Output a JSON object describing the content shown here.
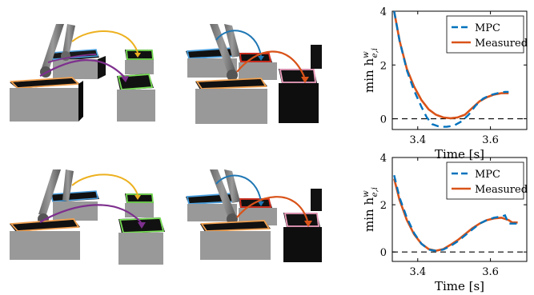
{
  "figure": {
    "panels": [
      {
        "name": "top-left-scene",
        "description_visible": false
      },
      {
        "name": "top-middle-scene",
        "description_visible": false
      },
      {
        "name": "bottom-left-scene",
        "description_visible": false
      },
      {
        "name": "bottom-middle-scene",
        "description_visible": false
      }
    ]
  },
  "colors": {
    "mpc": "#0072BD",
    "measured": "#D95319",
    "yellow": "#EDB120",
    "purple": "#7E2F8E",
    "blue": "#1f77b4",
    "green": "#77dd55",
    "orange_outline": "#f0a050",
    "pink_outline": "#f0a0c0",
    "red_outline": "#e03020"
  },
  "chart_data": [
    {
      "type": "line",
      "title": "",
      "xlabel": "Time [s]",
      "ylabel": "min h",
      "ylabel_sup": "w",
      "ylabel_sub": "e,i",
      "xlim": [
        3.33,
        3.7
      ],
      "ylim": [
        -0.4,
        4
      ],
      "xticks": [
        3.4,
        3.6
      ],
      "xtick_labels": [
        "3.4",
        "3.6"
      ],
      "yticks": [
        0,
        2,
        4
      ],
      "ytick_labels": [
        "0",
        "2",
        "4"
      ],
      "zero_line": true,
      "legend": "top-right",
      "series": [
        {
          "name": "MPC",
          "style": "dashed",
          "x": [
            3.335,
            3.35,
            3.37,
            3.39,
            3.41,
            3.425,
            3.44,
            3.46,
            3.48,
            3.5,
            3.52,
            3.54,
            3.56,
            3.58,
            3.6,
            3.62,
            3.64,
            3.65
          ],
          "y": [
            4.0,
            2.9,
            1.8,
            1.05,
            0.45,
            0.05,
            -0.2,
            -0.3,
            -0.3,
            -0.25,
            -0.1,
            0.15,
            0.5,
            0.75,
            0.88,
            0.95,
            1.0,
            1.0
          ]
        },
        {
          "name": "Measured",
          "style": "solid",
          "x": [
            3.335,
            3.35,
            3.37,
            3.39,
            3.41,
            3.43,
            3.45,
            3.47,
            3.49,
            3.51,
            3.53,
            3.55,
            3.57,
            3.59,
            3.61,
            3.63,
            3.65
          ],
          "y": [
            4.0,
            2.9,
            1.85,
            1.2,
            0.7,
            0.35,
            0.15,
            0.05,
            0.02,
            0.05,
            0.15,
            0.4,
            0.65,
            0.8,
            0.9,
            0.95,
            0.95
          ]
        }
      ]
    },
    {
      "type": "line",
      "title": "",
      "xlabel": "Time [s]",
      "ylabel": "min h",
      "ylabel_sup": "w",
      "ylabel_sub": "e,i",
      "xlim": [
        3.33,
        3.7
      ],
      "ylim": [
        -0.4,
        4
      ],
      "xticks": [
        3.4,
        3.6
      ],
      "xtick_labels": [
        "3.4",
        "3.6"
      ],
      "yticks": [
        0,
        2,
        4
      ],
      "ytick_labels": [
        "0",
        "2",
        "4"
      ],
      "zero_line": true,
      "legend": "top-right",
      "series": [
        {
          "name": "MPC",
          "style": "dashed",
          "x": [
            3.335,
            3.35,
            3.37,
            3.39,
            3.41,
            3.43,
            3.45,
            3.47,
            3.49,
            3.51,
            3.53,
            3.55,
            3.57,
            3.59,
            3.61,
            3.63,
            3.64,
            3.65,
            3.66,
            3.675
          ],
          "y": [
            3.25,
            2.3,
            1.45,
            0.8,
            0.35,
            0.1,
            0.05,
            0.1,
            0.25,
            0.45,
            0.7,
            0.95,
            1.2,
            1.35,
            1.45,
            1.5,
            1.55,
            1.2,
            1.2,
            1.2
          ]
        },
        {
          "name": "Measured",
          "style": "solid",
          "x": [
            3.335,
            3.35,
            3.37,
            3.39,
            3.41,
            3.43,
            3.45,
            3.47,
            3.49,
            3.51,
            3.53,
            3.55,
            3.57,
            3.59,
            3.61,
            3.63,
            3.65,
            3.66,
            3.675
          ],
          "y": [
            3.1,
            2.2,
            1.35,
            0.75,
            0.35,
            0.12,
            0.05,
            0.12,
            0.3,
            0.5,
            0.75,
            1.0,
            1.2,
            1.35,
            1.42,
            1.45,
            1.35,
            1.25,
            1.25
          ]
        }
      ]
    }
  ]
}
